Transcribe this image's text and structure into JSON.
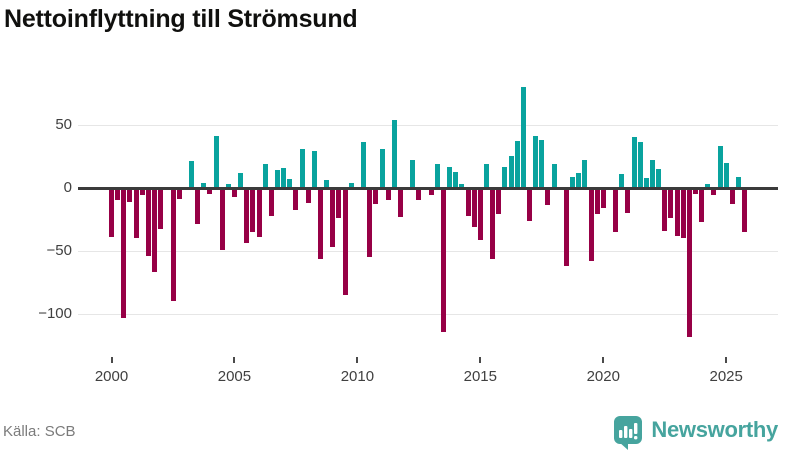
{
  "title": "Nettoinflyttning till Strömsund",
  "source": "Källa: SCB",
  "logo": {
    "text": "Newsworthy",
    "color": "#46a49e",
    "icon": "bar-chart-speech-bubble"
  },
  "chart_data": {
    "type": "bar",
    "title": "Nettoinflyttning till Strömsund",
    "xlabel": "",
    "ylabel": "",
    "ylim": [
      -125,
      92
    ],
    "grid": true,
    "positive_color": "#09a39e",
    "negative_color": "#970046",
    "yticks": [
      {
        "label": "50",
        "value": 50
      },
      {
        "label": "0",
        "value": 0
      },
      {
        "label": "−50",
        "value": -50
      },
      {
        "label": "−100",
        "value": -100
      }
    ],
    "xticks": [
      {
        "label": "2000",
        "year": 2000
      },
      {
        "label": "2005",
        "year": 2005
      },
      {
        "label": "2010",
        "year": 2010
      },
      {
        "label": "2015",
        "year": 2015
      },
      {
        "label": "2020",
        "year": 2020
      },
      {
        "label": "2025",
        "year": 2025
      }
    ],
    "categories": [
      "2000-Q1",
      "2000-Q2",
      "2000-Q3",
      "2000-Q4",
      "2001-Q1",
      "2001-Q2",
      "2001-Q3",
      "2001-Q4",
      "2002-Q1",
      "2002-Q2",
      "2002-Q3",
      "2002-Q4",
      "2003-Q1",
      "2003-Q2",
      "2003-Q3",
      "2003-Q4",
      "2004-Q1",
      "2004-Q2",
      "2004-Q3",
      "2004-Q4",
      "2005-Q1",
      "2005-Q2",
      "2005-Q3",
      "2005-Q4",
      "2006-Q1",
      "2006-Q2",
      "2006-Q3",
      "2006-Q4",
      "2007-Q1",
      "2007-Q2",
      "2007-Q3",
      "2007-Q4",
      "2008-Q1",
      "2008-Q2",
      "2008-Q3",
      "2008-Q4",
      "2009-Q1",
      "2009-Q2",
      "2009-Q3",
      "2009-Q4",
      "2010-Q1",
      "2010-Q2",
      "2010-Q3",
      "2010-Q4",
      "2011-Q1",
      "2011-Q2",
      "2011-Q3",
      "2011-Q4",
      "2012-Q1",
      "2012-Q2",
      "2012-Q3",
      "2012-Q4",
      "2013-Q1",
      "2013-Q2",
      "2013-Q3",
      "2013-Q4",
      "2014-Q1",
      "2014-Q2",
      "2014-Q3",
      "2014-Q4",
      "2015-Q1",
      "2015-Q2",
      "2015-Q3",
      "2015-Q4",
      "2016-Q1",
      "2016-Q2",
      "2016-Q3",
      "2016-Q4",
      "2017-Q1",
      "2017-Q2",
      "2017-Q3",
      "2017-Q4",
      "2018-Q1",
      "2018-Q2",
      "2018-Q3",
      "2018-Q4",
      "2019-Q1",
      "2019-Q2",
      "2019-Q3",
      "2019-Q4",
      "2020-Q1",
      "2020-Q2",
      "2020-Q3",
      "2020-Q4",
      "2021-Q1",
      "2021-Q2",
      "2021-Q3",
      "2021-Q4",
      "2022-Q1",
      "2022-Q2",
      "2022-Q3",
      "2022-Q4",
      "2023-Q1",
      "2023-Q2",
      "2023-Q3",
      "2023-Q4",
      "2024-Q1",
      "2024-Q2",
      "2024-Q3",
      "2024-Q4",
      "2025-Q1",
      "2025-Q2",
      "2025-Q3",
      "2025-Q4"
    ],
    "values": [
      -38,
      -9,
      -102,
      -10,
      -39,
      -5,
      -53,
      -66,
      -32,
      0,
      -89,
      -8,
      0,
      21,
      -28,
      4,
      -4,
      41,
      -48,
      3,
      -6,
      12,
      -43,
      -34,
      -38,
      19,
      -21,
      14,
      16,
      7,
      -17,
      31,
      -11,
      29,
      -55,
      6,
      -46,
      -23,
      -84,
      4,
      0,
      36,
      -54,
      -12,
      31,
      -9,
      54,
      -22,
      0,
      22,
      -9,
      0,
      -5,
      19,
      -113,
      17,
      13,
      3,
      -21,
      -30,
      -40,
      19,
      -55,
      -20,
      17,
      25,
      37,
      80,
      -25,
      41,
      38,
      -13,
      19,
      0,
      -61,
      9,
      12,
      22,
      -57,
      -20,
      -15,
      0,
      -34,
      11,
      -19,
      40,
      36,
      8,
      22,
      15,
      -33,
      -23,
      -37,
      -39,
      -117,
      -4,
      -26,
      3,
      -5,
      33,
      20,
      -12,
      9,
      -34
    ]
  }
}
